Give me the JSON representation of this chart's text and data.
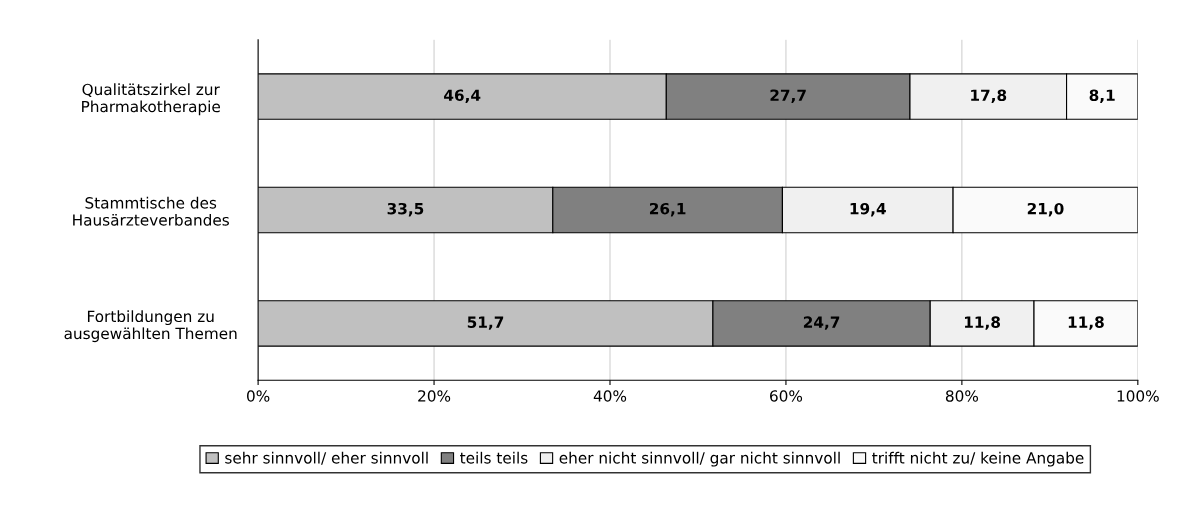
{
  "chart_data": {
    "type": "bar",
    "orientation": "horizontal",
    "stacked": true,
    "categories": [
      "Qualitätszirkel zur\nPharmakotherapie",
      "Stammtische des\nHausärzteverbandes",
      "Fortbildungen zu\nausgewählten Themen"
    ],
    "series": [
      {
        "name": "sehr sinnvoll/ eher sinnvoll",
        "color": "#c0c0c0",
        "values": [
          46.4,
          33.5,
          51.7
        ],
        "value_labels": [
          "46,4",
          "33,5",
          "51,7"
        ]
      },
      {
        "name": "teils teils",
        "color": "#808080",
        "values": [
          27.7,
          26.1,
          24.7
        ],
        "value_labels": [
          "27,7",
          "26,1",
          "24,7"
        ]
      },
      {
        "name": "eher nicht sinnvoll/ gar nicht sinnvoll",
        "color": "#f0f0f0",
        "values": [
          17.8,
          19.4,
          11.8
        ],
        "value_labels": [
          "17,8",
          "19,4",
          "11,8"
        ]
      },
      {
        "name": "trifft nicht zu/ keine Angabe",
        "color": "#fafafa",
        "values": [
          8.1,
          21.0,
          11.8
        ],
        "value_labels": [
          "8,1",
          "21,0",
          "11,8"
        ]
      }
    ],
    "xlim": [
      0,
      100
    ],
    "xticks": [
      {
        "value": 0,
        "label": "0%"
      },
      {
        "value": 20,
        "label": "20%"
      },
      {
        "value": 40,
        "label": "40%"
      },
      {
        "value": 60,
        "label": "60%"
      },
      {
        "value": 80,
        "label": "80%"
      },
      {
        "value": 100,
        "label": "100%"
      }
    ],
    "grid": "x",
    "legend": "bottom"
  }
}
